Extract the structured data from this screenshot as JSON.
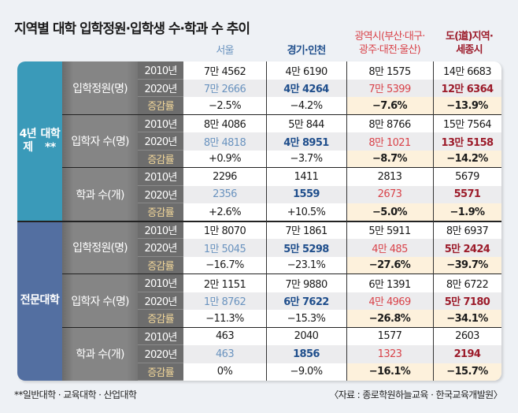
{
  "title": "지역별 대학 입학정원·입학생 수·학과 수 추이",
  "colors": {
    "seoul": "#6a93bf",
    "gyeonggi": "#1f4e8c",
    "metro": "#d9434a",
    "province": "#9c1b2a",
    "cat_4yr": "#3a9ab9",
    "cat_college": "#536fa1"
  },
  "columns": [
    {
      "label": "서울",
      "line1": "서울",
      "line2": ""
    },
    {
      "label": "경기·인천",
      "line1": "경기·인천",
      "line2": ""
    },
    {
      "label": "광역시(부산·대구·광주·대전·울산)",
      "line1": "광역시(부산·대구·",
      "line2": "광주·대전·울산)"
    },
    {
      "label": "도(道)지역·세종시",
      "line1": "도(道)지역·",
      "line2": "세종시"
    }
  ],
  "row_labels": {
    "y2010": "2010년",
    "y2020": "2020년",
    "rate": "증감률"
  },
  "categories": [
    {
      "label_line1": "4년제",
      "label_line2": "대학**",
      "groups": [
        {
          "label": "입학정원(명)",
          "y2010": [
            "7만 4562",
            "4만 6190",
            "8만 1575",
            "14만 6683"
          ],
          "y2020": [
            "7만 2666",
            "4만 4264",
            "7만 5399",
            "12만 6364"
          ],
          "rate": [
            "−2.5%",
            "−4.2%",
            "−7.6%",
            "−13.9%"
          ]
        },
        {
          "label": "입학자 수(명)",
          "y2010": [
            "8만 4086",
            "5만 844",
            "8만 8766",
            "15만 7564"
          ],
          "y2020": [
            "8만 4818",
            "4만 8951",
            "8만 1021",
            "13만 5158"
          ],
          "rate": [
            "+0.9%",
            "−3.7%",
            "−8.7%",
            "−14.2%"
          ]
        },
        {
          "label": "학과 수(개)",
          "y2010": [
            "2296",
            "1411",
            "2813",
            "5679"
          ],
          "y2020": [
            "2356",
            "1559",
            "2673",
            "5571"
          ],
          "rate": [
            "+2.6%",
            "+10.5%",
            "−5.0%",
            "−1.9%"
          ]
        }
      ]
    },
    {
      "label_line1": "전문",
      "label_line2": "대학",
      "groups": [
        {
          "label": "입학정원(명)",
          "y2010": [
            "1만 8070",
            "7만 1861",
            "5만 5911",
            "8만 6937"
          ],
          "y2020": [
            "1만 5045",
            "5만 5298",
            "4만 485",
            "5만 2424"
          ],
          "rate": [
            "−16.7%",
            "−23.1%",
            "−27.6%",
            "−39.7%"
          ]
        },
        {
          "label": "입학자 수(명)",
          "y2010": [
            "2만 1151",
            "7만 9880",
            "6만 1391",
            "8만 6722"
          ],
          "y2020": [
            "1만 8762",
            "6만 7622",
            "4만 4969",
            "5만 7180"
          ],
          "rate": [
            "−11.3%",
            "−15.3%",
            "−26.8%",
            "−34.1%"
          ]
        },
        {
          "label": "학과 수(개)",
          "y2010": [
            "463",
            "2040",
            "1577",
            "2603"
          ],
          "y2020": [
            "463",
            "1856",
            "1323",
            "2194"
          ],
          "rate": [
            "0%",
            "−9.0%",
            "−16.1%",
            "−15.7%"
          ]
        }
      ]
    }
  ],
  "footnote": "**일반대학 · 교육대학 · 산업대학",
  "source": "〈자료 : 종로학원하늘교육 · 한국교육개발원〉"
}
